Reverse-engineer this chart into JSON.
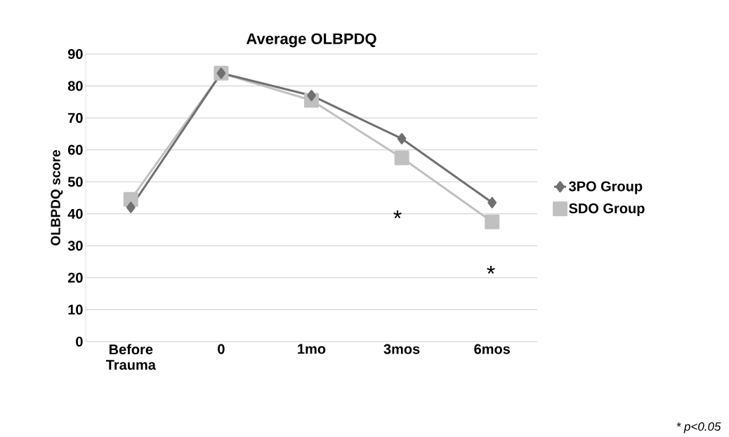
{
  "chart_data": {
    "type": "line",
    "title": "Average OLBPDQ",
    "ylabel": "OLBPDQ score",
    "categories": [
      "Before Trauma",
      "0",
      "1mo",
      "3mos",
      "6mos"
    ],
    "series": [
      {
        "name": "3PO Group",
        "color": "#707070",
        "marker": "diamond",
        "values": [
          42,
          84,
          77,
          63.5,
          43.5
        ]
      },
      {
        "name": "SDO Group",
        "color": "#c0c0c0",
        "marker": "square",
        "values": [
          44.5,
          84,
          75.5,
          57.5,
          37.5
        ]
      }
    ],
    "ylim": [
      0,
      90
    ],
    "yticks": [
      0,
      10,
      20,
      30,
      40,
      50,
      60,
      70,
      80,
      90
    ],
    "grid": "y",
    "legend": "right",
    "annotations": [
      "*",
      "*",
      "* *p*<0.05"
    ]
  }
}
